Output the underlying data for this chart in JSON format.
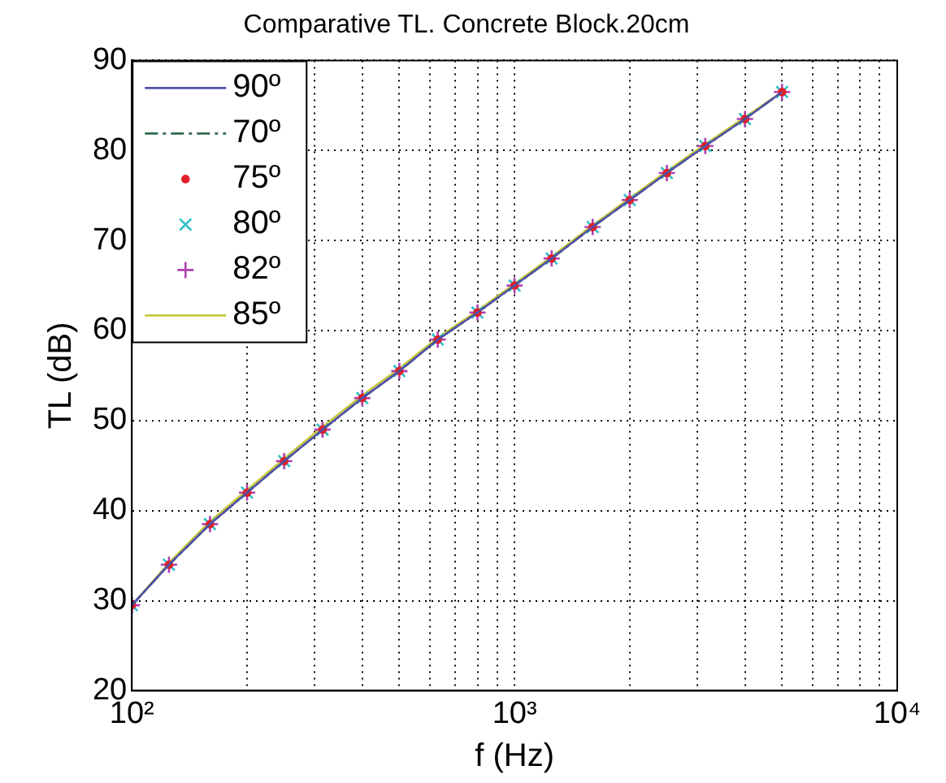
{
  "chart_data": {
    "type": "line",
    "title": "Comparative TL. Concrete Block.20cm",
    "xlabel": "f (Hz)",
    "ylabel": "TL (dB)",
    "x": [
      100,
      125,
      160,
      200,
      250,
      315,
      400,
      500,
      630,
      800,
      1000,
      1250,
      1600,
      2000,
      2500,
      3150,
      4000,
      5000
    ],
    "series": [
      {
        "name": "90º",
        "color": "#5050a8",
        "type": "line",
        "marker": "none",
        "line_style": "solid",
        "values": [
          29.5,
          34,
          38.5,
          42,
          45.5,
          49,
          52.5,
          55.5,
          59,
          62,
          65,
          68,
          71.5,
          74.5,
          77.5,
          80.5,
          83.5,
          86.5
        ]
      },
      {
        "name": "70º",
        "color": "#2e6e4e",
        "type": "line",
        "marker": "none",
        "line_style": "dashed",
        "values": [
          29.5,
          34,
          38.5,
          42,
          45.5,
          49,
          52.5,
          55.5,
          59,
          62,
          65,
          68,
          71.5,
          74.5,
          77.5,
          80.5,
          83.5,
          86.5
        ]
      },
      {
        "name": "75º",
        "color": "#e0202a",
        "type": "scatter",
        "marker": "circle",
        "values": [
          29.5,
          34,
          38.5,
          42,
          45.5,
          49,
          52.5,
          55.5,
          59,
          62,
          65,
          68,
          71.5,
          74.5,
          77.5,
          80.5,
          83.5,
          86.5
        ]
      },
      {
        "name": "80º",
        "color": "#30c0c8",
        "type": "scatter",
        "marker": "cross",
        "values": [
          29.5,
          34,
          38.5,
          42,
          45.5,
          49,
          52.5,
          55.5,
          59,
          62,
          65,
          68,
          71.5,
          74.5,
          77.5,
          80.5,
          83.5,
          86.5
        ]
      },
      {
        "name": "82º",
        "color": "#b040b0",
        "type": "scatter",
        "marker": "cross",
        "values": [
          29.5,
          34,
          38.5,
          42,
          45.5,
          49,
          52.5,
          55.5,
          59,
          62,
          65,
          68,
          71.5,
          74.5,
          77.5,
          80.5,
          83.5,
          86.5
        ]
      },
      {
        "name": "85º",
        "color": "#c8c83c",
        "type": "line",
        "marker": "none",
        "line_style": "solid",
        "values": [
          29.5,
          34.2,
          38.8,
          42.3,
          45.8,
          49.3,
          52.8,
          55.8,
          59.2,
          62.2,
          65.2,
          68.2,
          71.7,
          74.7,
          77.7,
          80.7,
          83.7,
          86.5
        ]
      }
    ],
    "xlim": [
      100,
      10000
    ],
    "ylim": [
      20,
      90
    ],
    "xticks": [
      {
        "value": 100,
        "label": "10²"
      },
      {
        "value": 200,
        "label": null
      },
      {
        "value": 300,
        "label": null
      },
      {
        "value": 400,
        "label": null
      },
      {
        "value": 500,
        "label": null
      },
      {
        "value": 600,
        "label": null
      },
      {
        "value": 700,
        "label": null
      },
      {
        "value": 800,
        "label": null
      },
      {
        "value": 900,
        "label": null
      },
      {
        "value": 1000,
        "label": "10³"
      },
      {
        "value": 2000,
        "label": null
      },
      {
        "value": 3000,
        "label": null
      },
      {
        "value": 4000,
        "label": null
      },
      {
        "value": 5000,
        "label": null
      },
      {
        "value": 6000,
        "label": null
      },
      {
        "value": 7000,
        "label": null
      },
      {
        "value": 8000,
        "label": null
      },
      {
        "value": 9000,
        "label": null
      },
      {
        "value": 10000,
        "label": "10⁴"
      }
    ],
    "yticks": [
      20,
      30,
      40,
      50,
      60,
      70,
      80,
      90
    ],
    "log": "x",
    "grid": true,
    "legend": "top left"
  }
}
